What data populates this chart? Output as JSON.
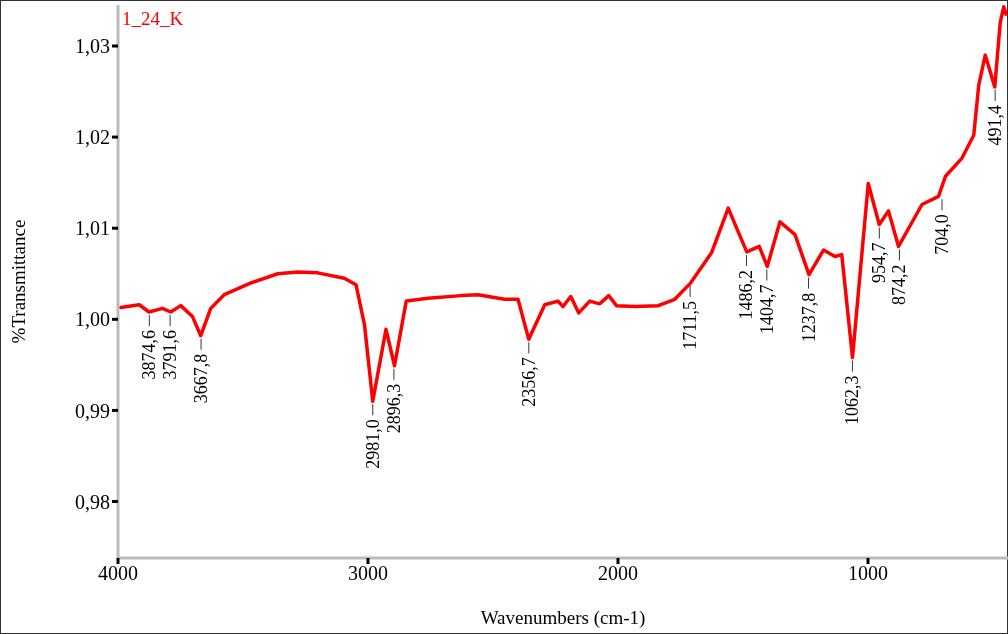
{
  "chart_data": {
    "type": "line",
    "xlabel": "Wavenumbers (cm-1)",
    "ylabel": "%Transmittance",
    "xlim": [
      4000,
      440
    ],
    "xticks": [
      4000,
      3000,
      2000,
      1000
    ],
    "ylim": [
      0.9738,
      1.0345
    ],
    "yticks": [
      {
        "value": 0.98,
        "label": "0,98"
      },
      {
        "value": 0.99,
        "label": "0,99"
      },
      {
        "value": 1.0,
        "label": "1,00"
      },
      {
        "value": 1.01,
        "label": "1,01"
      },
      {
        "value": 1.02,
        "label": "1,02"
      },
      {
        "value": 1.03,
        "label": "1,03"
      }
    ],
    "grid": false,
    "legend": false,
    "marker": "none",
    "series": [
      {
        "name": "1_24_K",
        "color": "#ff0000",
        "x": [
          3989,
          3915,
          3876,
          3822,
          3789,
          3749,
          3702,
          3669,
          3629,
          3575,
          3468,
          3361,
          3281,
          3201,
          3095,
          3048,
          3014,
          2981,
          2928,
          2894,
          2847,
          2760,
          2627,
          2560,
          2454,
          2400,
          2357,
          2293,
          2240,
          2220,
          2189,
          2157,
          2113,
          2073,
          2037,
          2006,
          1933,
          1839,
          1773,
          1709,
          1626,
          1559,
          1519,
          1485,
          1435,
          1403,
          1352,
          1292,
          1236,
          1178,
          1132,
          1105,
          1062,
          999,
          955,
          918,
          878,
          784,
          718,
          690,
          624,
          577,
          557,
          531,
          493,
          471,
          457,
          448
        ],
        "values": [
          1.0013,
          1.0016,
          1.0008,
          1.0012,
          1.0008,
          1.0015,
          1.0003,
          0.9982,
          1.0012,
          1.0027,
          1.004,
          1.005,
          1.0052,
          1.0051,
          1.0045,
          1.0038,
          0.9994,
          0.991,
          0.9989,
          0.9949,
          1.002,
          1.0023,
          1.0026,
          1.0027,
          1.0022,
          1.0022,
          0.9978,
          1.0016,
          1.002,
          1.0014,
          1.0025,
          1.0007,
          1.002,
          1.0017,
          1.0026,
          1.0015,
          1.0014,
          1.0015,
          1.0022,
          1.004,
          1.0073,
          1.0122,
          1.0096,
          1.0074,
          1.008,
          1.0058,
          1.0107,
          1.0093,
          1.0049,
          1.0076,
          1.0069,
          1.0071,
          0.9958,
          1.0149,
          1.0104,
          1.0119,
          1.008,
          1.0126,
          1.0135,
          1.0157,
          1.0177,
          1.0202,
          1.0257,
          1.029,
          1.0255,
          1.0326,
          1.0343,
          1.0335
        ]
      }
    ],
    "annotations": [
      {
        "text": "3874,6",
        "x": 3874.6,
        "y": 1.0008
      },
      {
        "text": "3791,6",
        "x": 3791.6,
        "y": 1.0008
      },
      {
        "text": "3667,8",
        "x": 3667.8,
        "y": 0.9982
      },
      {
        "text": "2981,0",
        "x": 2981.0,
        "y": 0.991
      },
      {
        "text": "2896,3",
        "x": 2896.3,
        "y": 0.9949
      },
      {
        "text": "2356,7",
        "x": 2356.7,
        "y": 0.9978
      },
      {
        "text": "1711,5",
        "x": 1711.5,
        "y": 1.004
      },
      {
        "text": "1486,2",
        "x": 1486.2,
        "y": 1.0074
      },
      {
        "text": "1404,7",
        "x": 1404.7,
        "y": 1.0058
      },
      {
        "text": "1237,8",
        "x": 1237.8,
        "y": 1.0049
      },
      {
        "text": "1062,3",
        "x": 1062.3,
        "y": 0.9958
      },
      {
        "text": "954,7",
        "x": 954.7,
        "y": 1.0104
      },
      {
        "text": "874,2",
        "x": 874.2,
        "y": 1.008
      },
      {
        "text": "704,0",
        "x": 704.0,
        "y": 1.0135
      },
      {
        "text": "491,4",
        "x": 491.4,
        "y": 1.0255
      }
    ]
  }
}
